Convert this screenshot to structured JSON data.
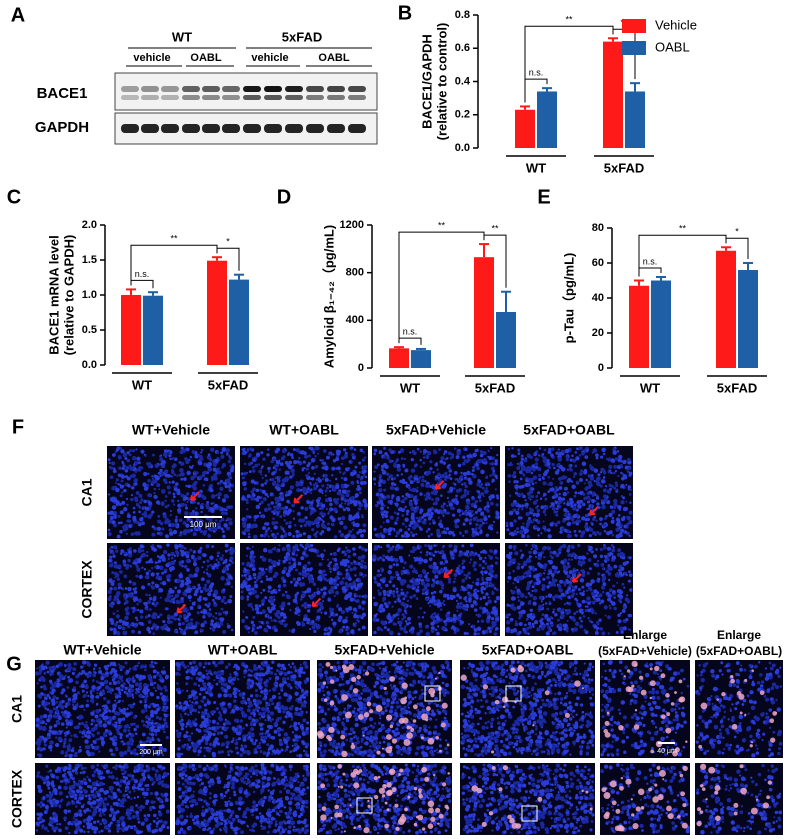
{
  "panel_a": {
    "label": "A",
    "groups": [
      "WT",
      "5xFAD"
    ],
    "treatments": [
      "vehicle",
      "OABL",
      "vehicle",
      "OABL"
    ],
    "bands": [
      "BACE1",
      "GAPDH"
    ]
  },
  "chart_data": [
    {
      "type": "bar",
      "label": "B",
      "ylabel": [
        "BACE1/GAPDH",
        "(relative to control)"
      ],
      "categories": [
        "WT",
        "5xFAD"
      ],
      "series": [
        {
          "name": "Vehicle",
          "color": "#ff1a1a",
          "values": [
            0.23,
            0.64
          ],
          "errors": [
            0.02,
            0.02
          ]
        },
        {
          "name": "OABL",
          "color": "#1f5fa6",
          "values": [
            0.34,
            0.34
          ],
          "errors": [
            0.02,
            0.05
          ]
        }
      ],
      "ylim": [
        0,
        0.8
      ],
      "yticks": [
        {
          "value": 0,
          "label": "0.0"
        },
        0.2,
        0.4,
        0.6,
        0.8
      ],
      "legend": true,
      "annotations": [
        "n.s.",
        "**",
        "**"
      ]
    },
    {
      "type": "bar",
      "label": "C",
      "ylabel": [
        "BACE1 mRNA level",
        "(relative to GAPDH)"
      ],
      "categories": [
        "WT",
        "5xFAD"
      ],
      "series": [
        {
          "color": "#ff1a1a",
          "values": [
            1.0,
            1.49
          ],
          "errors": [
            0.08,
            0.05
          ]
        },
        {
          "color": "#1f5fa6",
          "values": [
            0.99,
            1.22
          ],
          "errors": [
            0.05,
            0.07
          ]
        }
      ],
      "ylim": [
        0,
        2
      ],
      "yticks": [
        {
          "value": 0,
          "label": "0.0"
        },
        0.5,
        {
          "value": 1,
          "label": "1.0"
        },
        1.5,
        {
          "value": 2,
          "label": "2.0"
        }
      ],
      "legend": false,
      "annotations": [
        "n.s.",
        "**",
        "*"
      ]
    },
    {
      "type": "bar",
      "label": "D",
      "ylabel": [
        "Amyloid β₁₋₄₂（pg/mL)"
      ],
      "categories": [
        "WT",
        "5xFAD"
      ],
      "series": [
        {
          "color": "#ff1a1a",
          "values": [
            165,
            930
          ],
          "errors": [
            10,
            110
          ]
        },
        {
          "color": "#1f5fa6",
          "values": [
            150,
            470
          ],
          "errors": [
            10,
            170
          ]
        }
      ],
      "ylim": [
        0,
        1200
      ],
      "yticks": [
        0,
        400,
        800,
        1200
      ],
      "legend": false,
      "annotations": [
        "n.s.",
        "**",
        "**"
      ]
    },
    {
      "type": "bar",
      "label": "E",
      "ylabel": [
        "p-Tau（pg/mL)"
      ],
      "categories": [
        "WT",
        "5xFAD"
      ],
      "series": [
        {
          "color": "#ff1a1a",
          "values": [
            47,
            67
          ],
          "errors": [
            3,
            2
          ]
        },
        {
          "color": "#1f5fa6",
          "values": [
            50,
            56
          ],
          "errors": [
            2,
            4
          ]
        }
      ],
      "ylim": [
        0,
        80
      ],
      "yticks": [
        0,
        20,
        40,
        60,
        80
      ],
      "legend": false,
      "annotations": [
        "n.s.",
        "**",
        "*"
      ]
    }
  ],
  "panel_f": {
    "label": "F",
    "columns": [
      "WT+Vehicle",
      "WT+OABL",
      "5xFAD+Vehicle",
      "5xFAD+OABL"
    ],
    "rows": [
      "CA1",
      "CORTEX"
    ],
    "scale_bar": "100 μm"
  },
  "panel_g": {
    "label": "G",
    "columns": [
      "WT+Vehicle",
      "WT+OABL",
      "5xFAD+Vehicle",
      "5xFAD+OABL"
    ],
    "enlarge_columns": [
      {
        "title": "Enlarge",
        "subtitle": "(5xFAD+Vehicle)"
      },
      {
        "title": "Enlarge",
        "subtitle": "(5xFAD+OABL)"
      }
    ],
    "rows": [
      "CA1",
      "CORTEX"
    ],
    "scale_bars": [
      "200 μm",
      "40 μm"
    ]
  }
}
